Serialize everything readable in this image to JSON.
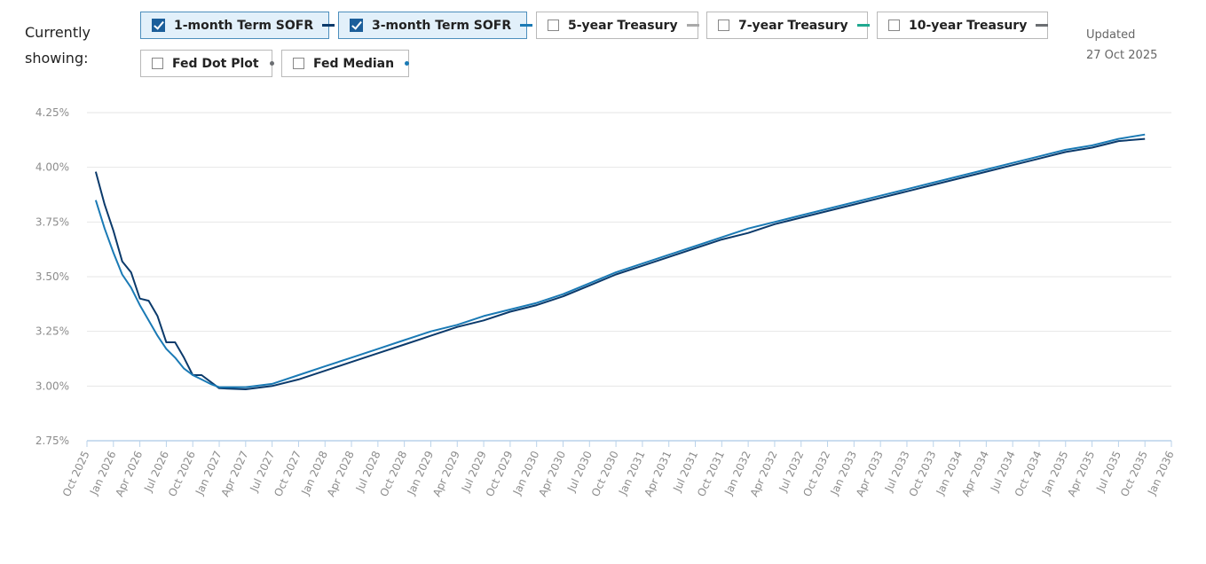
{
  "header": {
    "showing_label": "Currently showing:",
    "updated_label": "Updated",
    "updated_date": "27 Oct 2025"
  },
  "toggles": [
    {
      "label": "1-month Term SOFR",
      "checked": true,
      "color": "#0b3a6b",
      "marker": "line"
    },
    {
      "label": "3-month Term SOFR",
      "checked": true,
      "color": "#1a7ab5",
      "marker": "line"
    },
    {
      "label": "5-year Treasury",
      "checked": false,
      "color": "#a9a9a9",
      "marker": "line"
    },
    {
      "label": "7-year Treasury",
      "checked": false,
      "color": "#1fa890",
      "marker": "line"
    },
    {
      "label": "10-year Treasury",
      "checked": false,
      "color": "#6b6e72",
      "marker": "line"
    },
    {
      "label": "Fed Dot Plot",
      "checked": false,
      "color": "#6b6e72",
      "marker": "dot"
    },
    {
      "label": "Fed Median",
      "checked": false,
      "color": "#1a7ab5",
      "marker": "dot"
    }
  ],
  "chart_data": {
    "type": "line",
    "x_ticks": [
      "Oct 2025",
      "Jan 2026",
      "Apr 2026",
      "Jul 2026",
      "Oct 2026",
      "Jan 2027",
      "Apr 2027",
      "Jul 2027",
      "Oct 2027",
      "Jan 2028",
      "Apr 2028",
      "Jul 2028",
      "Oct 2028",
      "Jan 2029",
      "Apr 2029",
      "Jul 2029",
      "Oct 2029",
      "Jan 2030",
      "Apr 2030",
      "Jul 2030",
      "Oct 2030",
      "Jan 2031",
      "Apr 2031",
      "Jul 2031",
      "Oct 2031",
      "Jan 2032",
      "Apr 2032",
      "Jul 2032",
      "Oct 2032",
      "Jan 2033",
      "Apr 2033",
      "Jul 2033",
      "Oct 2033",
      "Jan 2034",
      "Apr 2034",
      "Jul 2034",
      "Oct 2034",
      "Jan 2035",
      "Apr 2035",
      "Jul 2035",
      "Oct 2035",
      "Jan 2036"
    ],
    "y_ticks": [
      "4.25%",
      "4.00%",
      "3.75%",
      "3.50%",
      "3.25%",
      "3.00%",
      "2.75%"
    ],
    "ylim": [
      2.75,
      4.25
    ],
    "y_unit": "%",
    "grid": true,
    "series": [
      {
        "name": "1-month Term SOFR",
        "color": "#0b3a6b",
        "points": [
          [
            "Nov 2025",
            3.98
          ],
          [
            "Dec 2025",
            3.83
          ],
          [
            "Jan 2026",
            3.71
          ],
          [
            "Feb 2026",
            3.57
          ],
          [
            "Mar 2026",
            3.52
          ],
          [
            "Apr 2026",
            3.4
          ],
          [
            "May 2026",
            3.39
          ],
          [
            "Jun 2026",
            3.32
          ],
          [
            "Jul 2026",
            3.2
          ],
          [
            "Aug 2026",
            3.2
          ],
          [
            "Sep 2026",
            3.13
          ],
          [
            "Oct 2026",
            3.05
          ],
          [
            "Nov 2026",
            3.05
          ],
          [
            "Dec 2026",
            3.02
          ],
          [
            "Jan 2027",
            2.99
          ],
          [
            "Apr 2027",
            2.985
          ],
          [
            "Jul 2027",
            3.0
          ],
          [
            "Oct 2027",
            3.03
          ],
          [
            "Jan 2028",
            3.07
          ],
          [
            "Apr 2028",
            3.11
          ],
          [
            "Jul 2028",
            3.15
          ],
          [
            "Oct 2028",
            3.19
          ],
          [
            "Jan 2029",
            3.23
          ],
          [
            "Apr 2029",
            3.27
          ],
          [
            "Jul 2029",
            3.3
          ],
          [
            "Oct 2029",
            3.34
          ],
          [
            "Jan 2030",
            3.37
          ],
          [
            "Apr 2030",
            3.41
          ],
          [
            "Jul 2030",
            3.46
          ],
          [
            "Oct 2030",
            3.51
          ],
          [
            "Jan 2031",
            3.55
          ],
          [
            "Apr 2031",
            3.59
          ],
          [
            "Jul 2031",
            3.63
          ],
          [
            "Oct 2031",
            3.67
          ],
          [
            "Jan 2032",
            3.7
          ],
          [
            "Apr 2032",
            3.74
          ],
          [
            "Jul 2032",
            3.77
          ],
          [
            "Oct 2032",
            3.8
          ],
          [
            "Jan 2033",
            3.83
          ],
          [
            "Apr 2033",
            3.86
          ],
          [
            "Jul 2033",
            3.89
          ],
          [
            "Oct 2033",
            3.92
          ],
          [
            "Jan 2034",
            3.95
          ],
          [
            "Apr 2034",
            3.98
          ],
          [
            "Jul 2034",
            4.01
          ],
          [
            "Oct 2034",
            4.04
          ],
          [
            "Jan 2035",
            4.07
          ],
          [
            "Apr 2035",
            4.09
          ],
          [
            "Jul 2035",
            4.12
          ],
          [
            "Oct 2035",
            4.13
          ]
        ]
      },
      {
        "name": "3-month Term SOFR",
        "color": "#1a7ab5",
        "points": [
          [
            "Nov 2025",
            3.85
          ],
          [
            "Dec 2025",
            3.72
          ],
          [
            "Jan 2026",
            3.61
          ],
          [
            "Feb 2026",
            3.51
          ],
          [
            "Mar 2026",
            3.45
          ],
          [
            "Apr 2026",
            3.37
          ],
          [
            "May 2026",
            3.3
          ],
          [
            "Jun 2026",
            3.23
          ],
          [
            "Jul 2026",
            3.17
          ],
          [
            "Aug 2026",
            3.13
          ],
          [
            "Sep 2026",
            3.08
          ],
          [
            "Oct 2026",
            3.05
          ],
          [
            "Nov 2026",
            3.03
          ],
          [
            "Dec 2026",
            3.01
          ],
          [
            "Jan 2027",
            2.995
          ],
          [
            "Apr 2027",
            2.995
          ],
          [
            "Jul 2027",
            3.01
          ],
          [
            "Oct 2027",
            3.05
          ],
          [
            "Jan 2028",
            3.09
          ],
          [
            "Apr 2028",
            3.13
          ],
          [
            "Jul 2028",
            3.17
          ],
          [
            "Oct 2028",
            3.21
          ],
          [
            "Jan 2029",
            3.25
          ],
          [
            "Apr 2029",
            3.28
          ],
          [
            "Jul 2029",
            3.32
          ],
          [
            "Oct 2029",
            3.35
          ],
          [
            "Jan 2030",
            3.38
          ],
          [
            "Apr 2030",
            3.42
          ],
          [
            "Jul 2030",
            3.47
          ],
          [
            "Oct 2030",
            3.52
          ],
          [
            "Jan 2031",
            3.56
          ],
          [
            "Apr 2031",
            3.6
          ],
          [
            "Jul 2031",
            3.64
          ],
          [
            "Oct 2031",
            3.68
          ],
          [
            "Jan 2032",
            3.72
          ],
          [
            "Apr 2032",
            3.75
          ],
          [
            "Jul 2032",
            3.78
          ],
          [
            "Oct 2032",
            3.81
          ],
          [
            "Jan 2033",
            3.84
          ],
          [
            "Apr 2033",
            3.87
          ],
          [
            "Jul 2033",
            3.9
          ],
          [
            "Oct 2033",
            3.93
          ],
          [
            "Jan 2034",
            3.96
          ],
          [
            "Apr 2034",
            3.99
          ],
          [
            "Jul 2034",
            4.02
          ],
          [
            "Oct 2034",
            4.05
          ],
          [
            "Jan 2035",
            4.08
          ],
          [
            "Apr 2035",
            4.1
          ],
          [
            "Jul 2035",
            4.13
          ],
          [
            "Oct 2035",
            4.15
          ]
        ]
      }
    ]
  }
}
